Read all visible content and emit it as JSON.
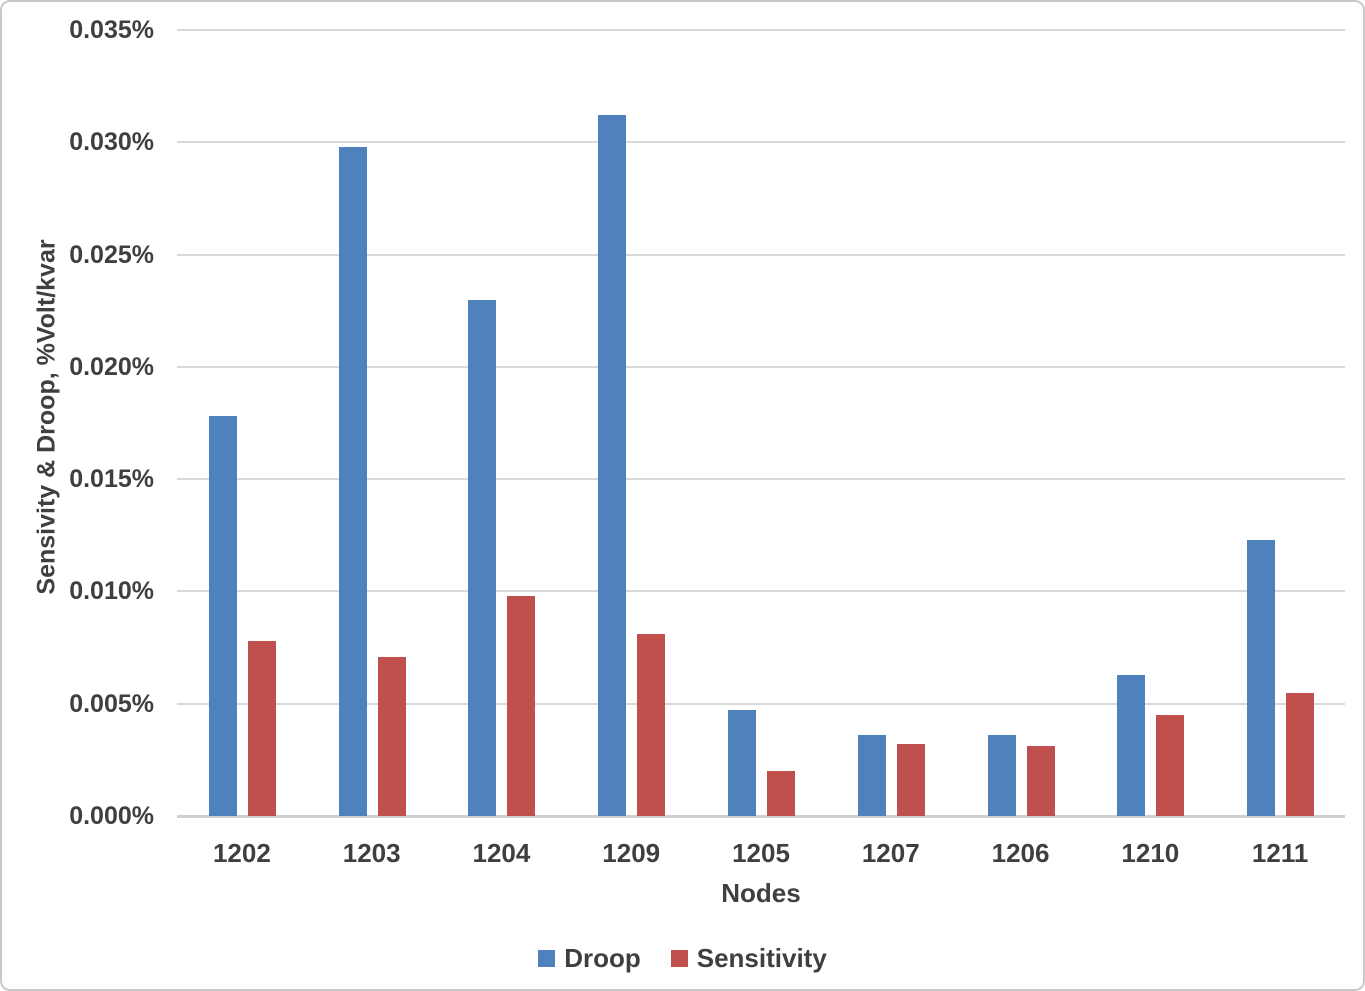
{
  "chart_data": {
    "type": "bar",
    "title": "",
    "xlabel": "Nodes",
    "ylabel": "Sensivity & Droop, %Volt/kvar",
    "categories": [
      "1202",
      "1203",
      "1204",
      "1209",
      "1205",
      "1207",
      "1206",
      "1210",
      "1211"
    ],
    "series": [
      {
        "name": "Droop",
        "color": "#4F81BD",
        "values": [
          0.0178,
          0.0298,
          0.023,
          0.0312,
          0.0047,
          0.0036,
          0.0036,
          0.0063,
          0.0123
        ]
      },
      {
        "name": "Sensitivity",
        "color": "#C0504D",
        "values": [
          0.0078,
          0.0071,
          0.0098,
          0.0081,
          0.002,
          0.0032,
          0.0031,
          0.0045,
          0.0055
        ]
      }
    ],
    "ylim": [
      0,
      0.035
    ],
    "ytick_interval": 0.005,
    "ytick_labels": [
      "0.000%",
      "0.005%",
      "0.010%",
      "0.015%",
      "0.020%",
      "0.025%",
      "0.030%",
      "0.035%"
    ],
    "grid": true,
    "legend_position": "bottom"
  },
  "style": {
    "droop_color": "#4F81BD",
    "sensitivity_color": "#C0504D",
    "gridline_color": "#D9D9D9",
    "axis_line_color": "#CFCFCF",
    "text_color": "#3F3F3F",
    "border_color": "#C9C9C9",
    "background": "#FFFFFF"
  }
}
